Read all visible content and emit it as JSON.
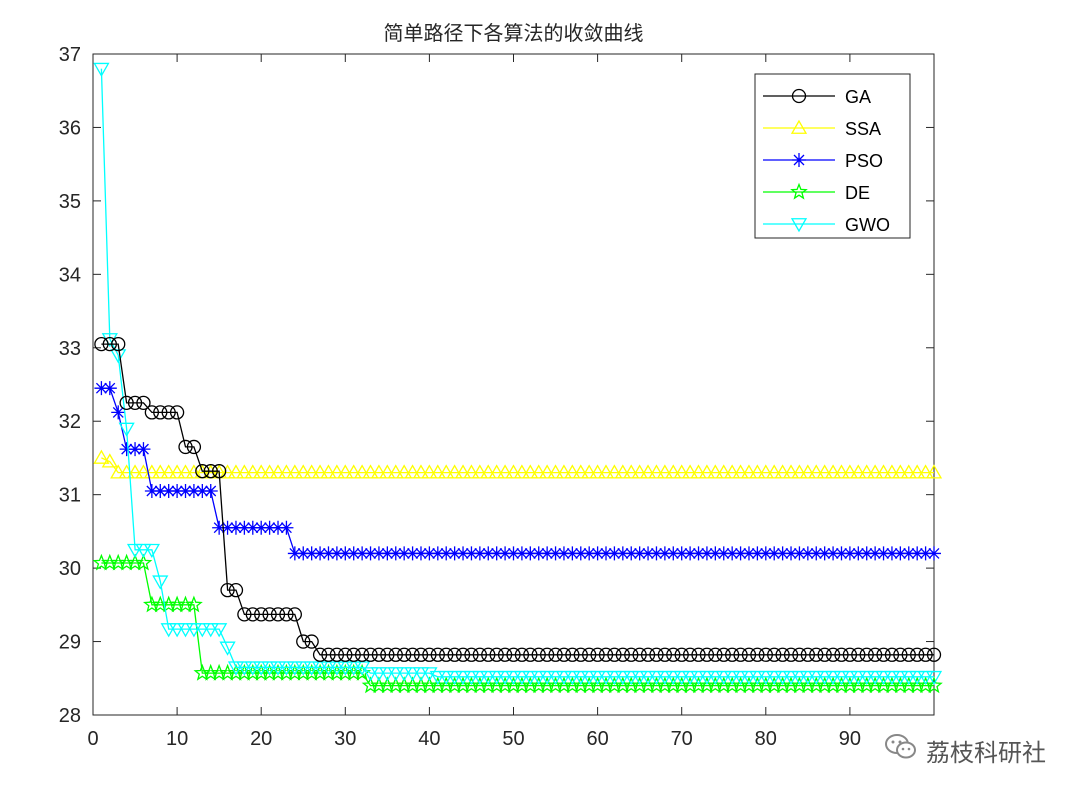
{
  "chart_data": {
    "type": "line",
    "title": "简单路径下各算法的收敛曲线",
    "xlabel": "",
    "ylabel": "",
    "xlim": [
      0,
      100
    ],
    "ylim": [
      28,
      37
    ],
    "xticks": [
      0,
      10,
      20,
      30,
      40,
      50,
      60,
      70,
      80,
      90
    ],
    "yticks": [
      28,
      29,
      30,
      31,
      32,
      33,
      34,
      35,
      36,
      37
    ],
    "grid": false,
    "legend_position": "top-right",
    "x": [
      1,
      100
    ],
    "series": [
      {
        "name": "GA",
        "color": "#000000",
        "marker": "circle",
        "steps": [
          [
            1,
            33.05
          ],
          [
            4,
            32.25
          ],
          [
            7,
            32.12
          ],
          [
            11,
            31.65
          ],
          [
            13,
            31.32
          ],
          [
            16,
            29.7
          ],
          [
            18,
            29.37
          ],
          [
            25,
            29.0
          ],
          [
            27,
            28.82
          ]
        ]
      },
      {
        "name": "SSA",
        "color": "#FFFF00",
        "marker": "triangle-up",
        "steps": [
          [
            1,
            31.5
          ],
          [
            2,
            31.45
          ],
          [
            3,
            31.3
          ]
        ]
      },
      {
        "name": "PSO",
        "color": "#0000FF",
        "marker": "star",
        "steps": [
          [
            1,
            32.45
          ],
          [
            3,
            32.12
          ],
          [
            4,
            31.62
          ],
          [
            7,
            31.05
          ],
          [
            15,
            30.55
          ],
          [
            24,
            30.2
          ]
        ]
      },
      {
        "name": "DE",
        "color": "#00FF00",
        "marker": "pentagram",
        "steps": [
          [
            1,
            30.07
          ],
          [
            7,
            29.5
          ],
          [
            13,
            28.57
          ],
          [
            33,
            28.4
          ]
        ]
      },
      {
        "name": "GWO",
        "color": "#00FFFF",
        "marker": "triangle-down",
        "steps": [
          [
            1,
            36.8
          ],
          [
            2,
            33.12
          ],
          [
            3,
            32.9
          ],
          [
            4,
            31.9
          ],
          [
            5,
            30.25
          ],
          [
            8,
            29.82
          ],
          [
            9,
            29.17
          ],
          [
            16,
            28.92
          ],
          [
            17,
            28.65
          ],
          [
            33,
            28.57
          ],
          [
            41,
            28.52
          ]
        ]
      }
    ]
  },
  "watermark": {
    "text": "荔枝科研社",
    "icon": "wechat-icon"
  }
}
